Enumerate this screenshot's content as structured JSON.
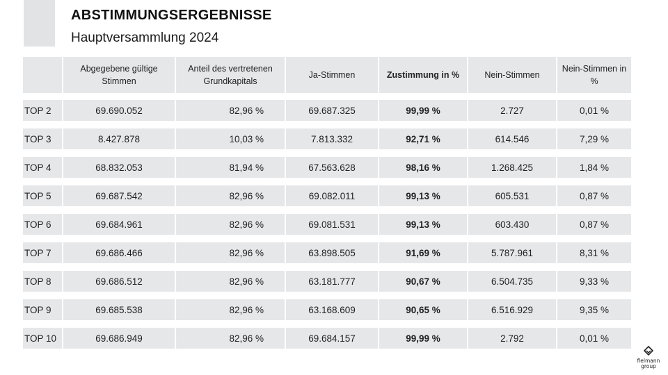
{
  "header": {
    "title": "ABSTIMMUNGSERGEBNISSE",
    "subtitle": "Hauptversammlung 2024"
  },
  "table": {
    "columns": [
      "",
      "Abgegebene gültige Stimmen",
      "Anteil des vertretenen Grundkapitals",
      "Ja-Stimmen",
      "Zustimmung in %",
      "Nein-Stimmen",
      "Nein-Stimmen in %"
    ],
    "rows": [
      [
        "TOP 2",
        "69.690.052",
        "82,96 %",
        "69.687.325",
        "99,99 %",
        "2.727",
        "0,01 %"
      ],
      [
        "TOP 3",
        "8.427.878",
        "10,03 %",
        "7.813.332",
        "92,71 %",
        "614.546",
        "7,29 %"
      ],
      [
        "TOP 4",
        "68.832.053",
        "81,94 %",
        "67.563.628",
        "98,16 %",
        "1.268.425",
        "1,84 %"
      ],
      [
        "TOP 5",
        "69.687.542",
        "82,96 %",
        "69.082.011",
        "99,13 %",
        "605.531",
        "0,87 %"
      ],
      [
        "TOP 6",
        "69.684.961",
        "82,96 %",
        "69.081.531",
        "99,13 %",
        "603.430",
        "0,87 %"
      ],
      [
        "TOP 7",
        "69.686.466",
        "82,96 %",
        "63.898.505",
        "91,69 %",
        "5.787.961",
        "8,31 %"
      ],
      [
        "TOP 8",
        "69.686.512",
        "82,96 %",
        "63.181.777",
        "90,67 %",
        "6.504.735",
        "9,33 %"
      ],
      [
        "TOP 9",
        "69.685.538",
        "82,96 %",
        "63.168.609",
        "90,65 %",
        "6.516.929",
        "9,35 %"
      ],
      [
        "TOP 10",
        "69.686.949",
        "82,96 %",
        "69.684.157",
        "99,99 %",
        "2.792",
        "0,01 %"
      ]
    ]
  },
  "logo": {
    "icon": "fielmann-logo-icon",
    "line1": "fielmann",
    "line2": "group"
  },
  "colors": {
    "cell_background": "#e6e7e9",
    "accent_block": "#e2e3e5",
    "text": "#1a1a1a"
  }
}
